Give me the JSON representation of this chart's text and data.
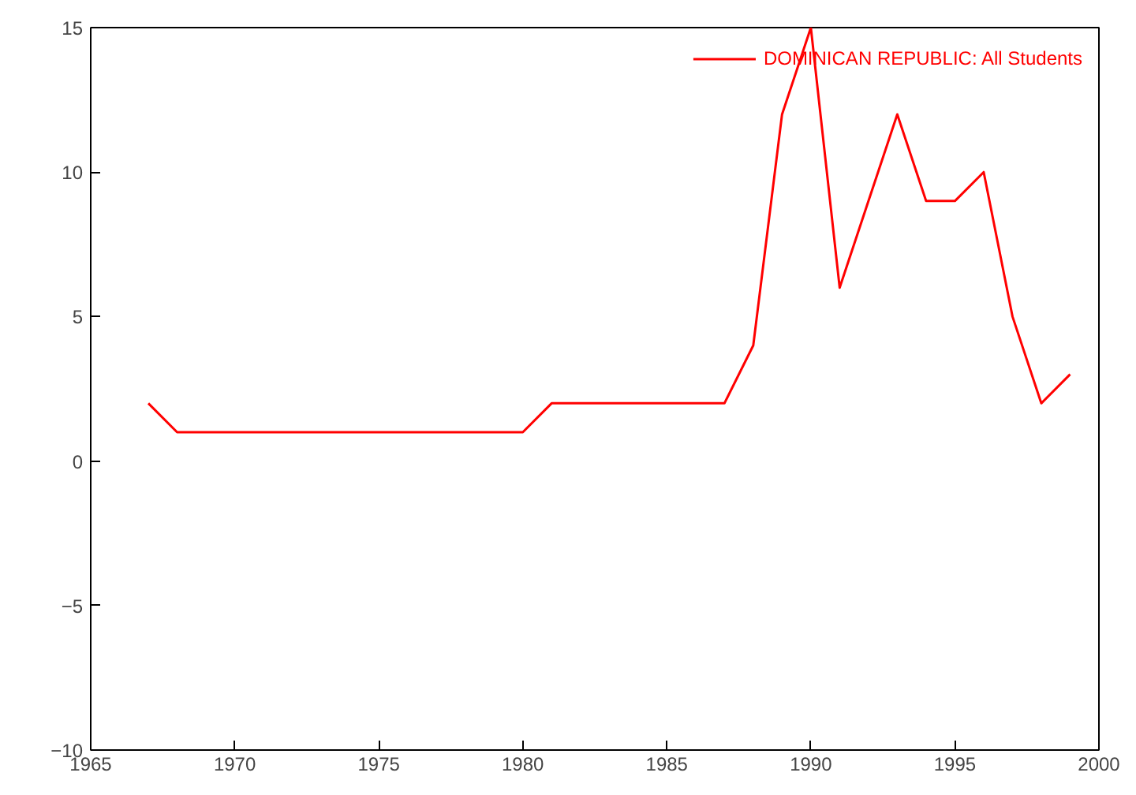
{
  "chart_data": {
    "type": "line",
    "x": [
      1967,
      1968,
      1969,
      1970,
      1971,
      1972,
      1973,
      1974,
      1975,
      1976,
      1977,
      1978,
      1979,
      1980,
      1981,
      1982,
      1983,
      1984,
      1985,
      1986,
      1987,
      1988,
      1989,
      1990,
      1991,
      1992,
      1993,
      1994,
      1995,
      1996,
      1997,
      1998,
      1999
    ],
    "series": [
      {
        "name": "DOMINICAN REPUBLIC: All Students",
        "color": "#ff0000",
        "values": [
          2,
          1,
          1,
          1,
          1,
          1,
          1,
          1,
          1,
          1,
          1,
          1,
          1,
          1,
          2,
          2,
          2,
          2,
          2,
          2,
          2,
          4,
          12,
          15,
          6,
          9,
          12,
          9,
          9,
          10,
          5,
          2,
          3
        ]
      }
    ],
    "xlim": [
      1965,
      2000
    ],
    "xticks": [
      1965,
      1970,
      1975,
      1980,
      1985,
      1990,
      1995,
      2000
    ],
    "ylim": [
      -10,
      15
    ],
    "yticks": [
      -10,
      -5,
      0,
      5,
      10,
      15
    ],
    "grid": false,
    "legend": "top right",
    "marker": "none",
    "line_style": "solid"
  }
}
